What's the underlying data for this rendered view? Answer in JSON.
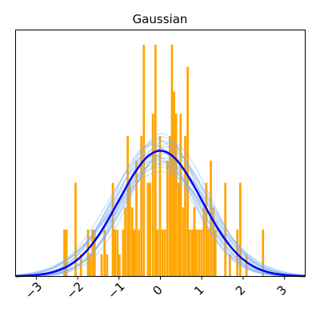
{
  "chart_data": {
    "type": "bar",
    "title": "Gaussian",
    "xlabel": "",
    "ylabel": "",
    "xlim": [
      -3.5,
      3.5
    ],
    "ylim": [
      0,
      1.0
    ],
    "x_ticks": [
      -3,
      -2,
      -1,
      0,
      1,
      2,
      3
    ],
    "x_tick_labels": [
      "−3",
      "−2",
      "−1",
      "0",
      "1",
      "2",
      "3"
    ],
    "y_ticks_visible": false,
    "grid": false,
    "legend": "none",
    "histogram": {
      "color": "#ffa500",
      "bin_width": 0.0533,
      "bins": [
        {
          "x": -2.32,
          "height": 0.19
        },
        {
          "x": -2.27,
          "height": 0.19
        },
        {
          "x": -2.05,
          "height": 0.38
        },
        {
          "x": -1.92,
          "height": 0.09
        },
        {
          "x": -1.75,
          "height": 0.19
        },
        {
          "x": -1.7,
          "height": 0.09
        },
        {
          "x": -1.64,
          "height": 0.19
        },
        {
          "x": -1.59,
          "height": 0.19
        },
        {
          "x": -1.42,
          "height": 0.09
        },
        {
          "x": -1.35,
          "height": 0.19
        },
        {
          "x": -1.29,
          "height": 0.09
        },
        {
          "x": -1.15,
          "height": 0.38
        },
        {
          "x": -1.1,
          "height": 0.19
        },
        {
          "x": -1.04,
          "height": 0.19
        },
        {
          "x": -0.99,
          "height": 0.09
        },
        {
          "x": -0.9,
          "height": 0.19
        },
        {
          "x": -0.85,
          "height": 0.28
        },
        {
          "x": -0.79,
          "height": 0.57
        },
        {
          "x": -0.74,
          "height": 0.38
        },
        {
          "x": -0.68,
          "height": 0.28
        },
        {
          "x": -0.63,
          "height": 0.19
        },
        {
          "x": -0.58,
          "height": 0.47
        },
        {
          "x": -0.52,
          "height": 0.19
        },
        {
          "x": -0.46,
          "height": 0.57
        },
        {
          "x": -0.4,
          "height": 0.94
        },
        {
          "x": -0.3,
          "height": 0.38
        },
        {
          "x": -0.25,
          "height": 0.38
        },
        {
          "x": -0.18,
          "height": 0.66
        },
        {
          "x": -0.12,
          "height": 0.94
        },
        {
          "x": -0.07,
          "height": 0.19
        },
        {
          "x": -0.01,
          "height": 0.57
        },
        {
          "x": 0.05,
          "height": 0.19
        },
        {
          "x": 0.11,
          "height": 0.19
        },
        {
          "x": 0.17,
          "height": 0.47
        },
        {
          "x": 0.23,
          "height": 0.57
        },
        {
          "x": 0.28,
          "height": 0.94
        },
        {
          "x": 0.33,
          "height": 0.75
        },
        {
          "x": 0.38,
          "height": 0.66
        },
        {
          "x": 0.44,
          "height": 0.38
        },
        {
          "x": 0.49,
          "height": 0.66
        },
        {
          "x": 0.55,
          "height": 0.28
        },
        {
          "x": 0.6,
          "height": 0.57
        },
        {
          "x": 0.66,
          "height": 0.85
        },
        {
          "x": 0.71,
          "height": 0.19
        },
        {
          "x": 0.77,
          "height": 0.19
        },
        {
          "x": 0.82,
          "height": 0.28
        },
        {
          "x": 0.87,
          "height": 0.19
        },
        {
          "x": 0.93,
          "height": 0.19
        },
        {
          "x": 0.99,
          "height": 0.19
        },
        {
          "x": 1.05,
          "height": 0.28
        },
        {
          "x": 1.11,
          "height": 0.38
        },
        {
          "x": 1.16,
          "height": 0.19
        },
        {
          "x": 1.22,
          "height": 0.47
        },
        {
          "x": 1.28,
          "height": 0.28
        },
        {
          "x": 1.33,
          "height": 0.19
        },
        {
          "x": 1.57,
          "height": 0.38
        },
        {
          "x": 1.68,
          "height": 0.09
        },
        {
          "x": 1.86,
          "height": 0.19
        },
        {
          "x": 1.93,
          "height": 0.38
        },
        {
          "x": 2.08,
          "height": 0.09
        },
        {
          "x": 2.48,
          "height": 0.19
        }
      ]
    },
    "sample_curves": {
      "color": "#7fb2f0",
      "opacity": 0.45,
      "mu": [
        0.0,
        0.1,
        -0.1,
        0.15,
        -0.15,
        0.05,
        -0.05,
        0.2,
        -0.2,
        0.08,
        -0.08,
        0.12,
        -0.12,
        0.03,
        -0.03,
        0.18,
        -0.18,
        0.25,
        -0.25,
        0.0
      ],
      "sigma": [
        1.0,
        0.93,
        1.08,
        0.97,
        1.04,
        0.9,
        1.12,
        1.0,
        0.95,
        1.06,
        0.92,
        1.1,
        0.99,
        0.88,
        1.15,
        1.02,
        0.96,
        0.94,
        1.03,
        1.2
      ]
    },
    "mean_curve": {
      "color": "#0000ff",
      "mu": 0.0,
      "sigma": 1.0,
      "amplitude": 0.51
    },
    "sample_amplitude": 0.51
  }
}
